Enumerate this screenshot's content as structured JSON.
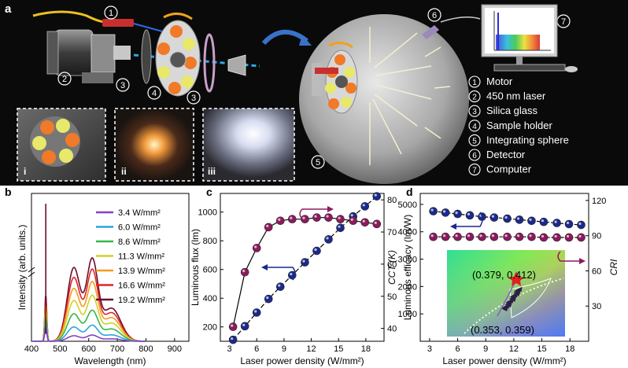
{
  "panel_a": {
    "label": "a",
    "callouts": [
      "1",
      "2",
      "3",
      "4",
      "3",
      "5",
      "6",
      "7"
    ],
    "insets": [
      "i",
      "ii",
      "iii"
    ],
    "legend": [
      {
        "num": "1",
        "text": "Motor"
      },
      {
        "num": "2",
        "text": "450 nm laser"
      },
      {
        "num": "3",
        "text": "Silica glass"
      },
      {
        "num": "4",
        "text": "Sample holder"
      },
      {
        "num": "5",
        "text": "Integrating sphere"
      },
      {
        "num": "6",
        "text": "Detector"
      },
      {
        "num": "7",
        "text": "Computer"
      }
    ]
  },
  "chart_data": [
    {
      "panel": "b",
      "type": "line",
      "xlabel": "Wavelength (nm)",
      "ylabel": "Intensity (arb. units.)",
      "xticks": [
        400,
        500,
        600,
        700,
        800,
        900
      ],
      "xlim": [
        400,
        950
      ],
      "legend": [
        "3.4 W/mm²",
        "6.0 W/mm²",
        "8.6 W/mm²",
        "11.3 W/mm²",
        "13.9 W/mm²",
        "16.6 W/mm²",
        "19.2 W/mm²"
      ],
      "colors": [
        "#8a3fc6",
        "#2aa6d8",
        "#39b54a",
        "#d4cf2a",
        "#f39a1e",
        "#e02424",
        "#6b0e2e"
      ],
      "broad_peak_relative": [
        0.05,
        0.13,
        0.25,
        0.37,
        0.48,
        0.58,
        0.67
      ],
      "laser_peak_nm": 450
    },
    {
      "panel": "c",
      "type": "line",
      "xlabel": "Laser power density (W/mm²)",
      "ylabel_left": "Luminous flux (lm)",
      "ylabel_right": "Luminous efficacy (lm/W)",
      "xticks": [
        3,
        6,
        9,
        12,
        15,
        18
      ],
      "xlim": [
        2,
        20
      ],
      "yticks_left": [
        200,
        400,
        600,
        800,
        1000
      ],
      "ylim_left": [
        100,
        1130
      ],
      "yticks_right": [
        40,
        50,
        60,
        70,
        80
      ],
      "ylim_right": [
        36,
        82
      ],
      "x": [
        3.4,
        4.7,
        6.0,
        7.3,
        8.6,
        9.9,
        11.3,
        12.6,
        13.9,
        15.2,
        16.6,
        17.9,
        19.2
      ],
      "series": [
        {
          "axis": "left",
          "color": "#1a2a8c",
          "values": [
            110,
            205,
            300,
            395,
            480,
            560,
            650,
            730,
            810,
            890,
            970,
            1040,
            1110
          ]
        },
        {
          "axis": "right",
          "color": "#8e1a5e",
          "values": [
            40.5,
            57.5,
            65,
            71.5,
            73.5,
            74,
            74,
            74.5,
            74.5,
            74,
            73.5,
            73,
            72.5
          ]
        }
      ]
    },
    {
      "panel": "d",
      "type": "line",
      "xlabel": "Laser power density (W/mm²)",
      "ylabel_left": "CCT (K)",
      "ylabel_right": "CRI",
      "xticks": [
        3,
        6,
        9,
        12,
        15,
        18
      ],
      "xlim": [
        2,
        20
      ],
      "yticks_left": [
        1000,
        2000,
        3000,
        4000,
        5000
      ],
      "ylim_left": [
        0,
        5400
      ],
      "yticks_right": [
        30,
        60,
        90,
        120
      ],
      "ylim_right": [
        0,
        126
      ],
      "x": [
        3.4,
        4.7,
        6.0,
        7.3,
        8.6,
        9.9,
        11.3,
        12.6,
        13.9,
        15.2,
        16.6,
        17.9,
        19.2
      ],
      "series": [
        {
          "axis": "left",
          "color": "#1a2a8c",
          "values": [
            4750,
            4700,
            4650,
            4600,
            4550,
            4520,
            4480,
            4440,
            4400,
            4360,
            4320,
            4280,
            4250
          ]
        },
        {
          "axis": "right",
          "color": "#8e1a5e",
          "values": [
            89,
            89,
            89,
            89,
            89,
            89,
            89,
            89,
            89,
            88.5,
            88.5,
            88.5,
            88.5
          ]
        }
      ],
      "inset_annotations": [
        "(0.379, 0.412)",
        "(0.353, 0.359)"
      ]
    }
  ],
  "panel_labels": {
    "b": "b",
    "c": "c",
    "d": "d"
  }
}
